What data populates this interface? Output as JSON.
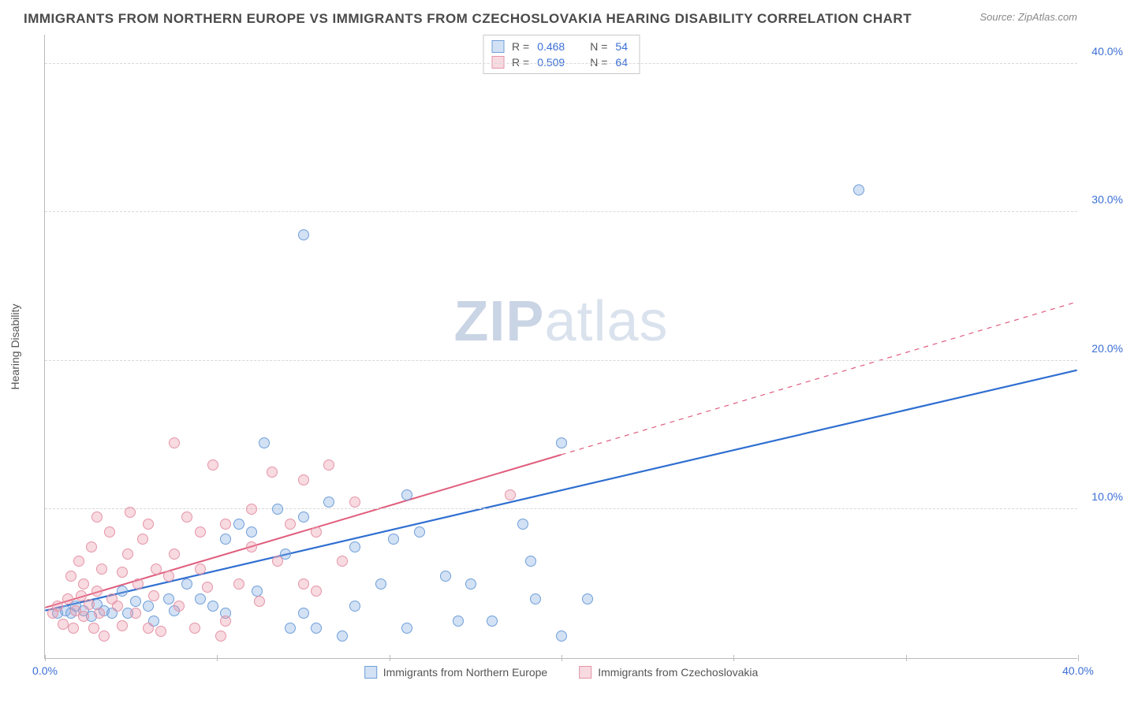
{
  "title": "IMMIGRANTS FROM NORTHERN EUROPE VS IMMIGRANTS FROM CZECHOSLOVAKIA HEARING DISABILITY CORRELATION CHART",
  "source": "Source: ZipAtlas.com",
  "watermark_a": "ZIP",
  "watermark_b": "atlas",
  "yaxis_title": "Hearing Disability",
  "chart": {
    "type": "scatter",
    "xlim": [
      0,
      40
    ],
    "ylim": [
      0,
      42
    ],
    "xtick_labels": [
      "0.0%",
      "40.0%"
    ],
    "xtick_positions": [
      0,
      40
    ],
    "xtick_minors": [
      0,
      6.67,
      13.33,
      20,
      26.67,
      33.33,
      40
    ],
    "ytick_labels": [
      "10.0%",
      "20.0%",
      "30.0%",
      "40.0%"
    ],
    "ytick_positions": [
      10,
      20,
      30,
      40
    ],
    "grid_color": "#d8d8d8",
    "background": "#ffffff",
    "marker_radius": 7,
    "marker_stroke_width": 1,
    "series": [
      {
        "name": "Immigrants from Northern Europe",
        "fill": "rgba(130,170,225,0.35)",
        "stroke": "#6f9fd8",
        "r": 0.468,
        "n": 54,
        "trend": {
          "x0": 0,
          "y0": 3.2,
          "x1": 40,
          "y1": 19.4,
          "color": "#2f6fd0",
          "width": 2.2,
          "solid_until_x": 40
        },
        "points": [
          [
            0.5,
            3.0
          ],
          [
            0.8,
            3.2
          ],
          [
            1.0,
            3.0
          ],
          [
            1.2,
            3.5
          ],
          [
            1.5,
            3.2
          ],
          [
            1.8,
            2.8
          ],
          [
            2.0,
            3.6
          ],
          [
            2.3,
            3.2
          ],
          [
            2.6,
            3.0
          ],
          [
            3.0,
            4.5
          ],
          [
            3.2,
            3.0
          ],
          [
            3.5,
            3.8
          ],
          [
            4.0,
            3.5
          ],
          [
            4.2,
            2.5
          ],
          [
            4.8,
            4.0
          ],
          [
            5.0,
            3.2
          ],
          [
            5.5,
            5.0
          ],
          [
            6.0,
            4.0
          ],
          [
            6.5,
            3.5
          ],
          [
            7.0,
            8.0
          ],
          [
            7.0,
            3.0
          ],
          [
            7.5,
            9.0
          ],
          [
            8.0,
            8.5
          ],
          [
            8.2,
            4.5
          ],
          [
            8.5,
            14.5
          ],
          [
            9.0,
            10.0
          ],
          [
            9.3,
            7.0
          ],
          [
            9.5,
            2.0
          ],
          [
            10.0,
            9.5
          ],
          [
            10.0,
            3.0
          ],
          [
            10.5,
            2.0
          ],
          [
            11.0,
            10.5
          ],
          [
            11.5,
            1.5
          ],
          [
            12.0,
            3.5
          ],
          [
            12.0,
            7.5
          ],
          [
            13.0,
            5.0
          ],
          [
            13.5,
            8.0
          ],
          [
            14.0,
            11.0
          ],
          [
            14.0,
            2.0
          ],
          [
            14.5,
            8.5
          ],
          [
            15.5,
            5.5
          ],
          [
            16.0,
            2.5
          ],
          [
            16.5,
            5.0
          ],
          [
            17.3,
            2.5
          ],
          [
            18.5,
            9.0
          ],
          [
            18.8,
            6.5
          ],
          [
            19.0,
            4.0
          ],
          [
            20.0,
            14.5
          ],
          [
            20.0,
            1.5
          ],
          [
            21.0,
            4.0
          ],
          [
            10.0,
            28.5
          ],
          [
            31.5,
            31.5
          ]
        ]
      },
      {
        "name": "Immigrants from Czechoslovakia",
        "fill": "rgba(235,150,170,0.35)",
        "stroke": "#e495a7",
        "r": 0.509,
        "n": 64,
        "trend": {
          "x0": 0,
          "y0": 3.4,
          "x1": 40,
          "y1": 24.0,
          "color": "#e05d7d",
          "width": 2.0,
          "solid_until_x": 20
        },
        "points": [
          [
            0.3,
            3.0
          ],
          [
            0.5,
            3.5
          ],
          [
            0.7,
            2.3
          ],
          [
            0.9,
            4.0
          ],
          [
            1.0,
            5.5
          ],
          [
            1.1,
            2.0
          ],
          [
            1.2,
            3.2
          ],
          [
            1.3,
            6.5
          ],
          [
            1.4,
            4.2
          ],
          [
            1.5,
            2.8
          ],
          [
            1.5,
            5.0
          ],
          [
            1.7,
            3.6
          ],
          [
            1.8,
            7.5
          ],
          [
            1.9,
            2.0
          ],
          [
            2.0,
            4.5
          ],
          [
            2.0,
            9.5
          ],
          [
            2.1,
            3.0
          ],
          [
            2.2,
            6.0
          ],
          [
            2.3,
            1.5
          ],
          [
            2.5,
            8.5
          ],
          [
            2.6,
            4.0
          ],
          [
            2.8,
            3.5
          ],
          [
            3.0,
            5.8
          ],
          [
            3.0,
            2.2
          ],
          [
            3.2,
            7.0
          ],
          [
            3.3,
            9.8
          ],
          [
            3.5,
            3.0
          ],
          [
            3.6,
            5.0
          ],
          [
            3.8,
            8.0
          ],
          [
            4.0,
            2.0
          ],
          [
            4.0,
            9.0
          ],
          [
            4.2,
            4.2
          ],
          [
            4.3,
            6.0
          ],
          [
            4.5,
            1.8
          ],
          [
            4.8,
            5.5
          ],
          [
            5.0,
            14.5
          ],
          [
            5.0,
            7.0
          ],
          [
            5.2,
            3.5
          ],
          [
            5.5,
            9.5
          ],
          [
            5.8,
            2.0
          ],
          [
            6.0,
            6.0
          ],
          [
            6.0,
            8.5
          ],
          [
            6.3,
            4.8
          ],
          [
            6.5,
            13.0
          ],
          [
            7.0,
            2.5
          ],
          [
            7.0,
            9.0
          ],
          [
            7.5,
            5.0
          ],
          [
            8.0,
            7.5
          ],
          [
            8.0,
            10.0
          ],
          [
            8.3,
            3.8
          ],
          [
            8.8,
            12.5
          ],
          [
            9.0,
            6.5
          ],
          [
            9.5,
            9.0
          ],
          [
            10.0,
            5.0
          ],
          [
            10.0,
            12.0
          ],
          [
            10.5,
            4.5
          ],
          [
            10.5,
            8.5
          ],
          [
            11.0,
            13.0
          ],
          [
            11.5,
            6.5
          ],
          [
            12.0,
            10.5
          ],
          [
            6.8,
            1.5
          ],
          [
            18.0,
            11.0
          ]
        ]
      }
    ]
  },
  "legend_top": {
    "row1": {
      "r_label": "R =",
      "r_value": "0.468",
      "n_label": "N =",
      "n_value": "54"
    },
    "row2": {
      "r_label": "R =",
      "r_value": "0.509",
      "n_label": "N =",
      "n_value": "64"
    }
  },
  "legend_bottom": {
    "series1": "Immigrants from Northern Europe",
    "series2": "Immigrants from Czechoslovakia"
  }
}
